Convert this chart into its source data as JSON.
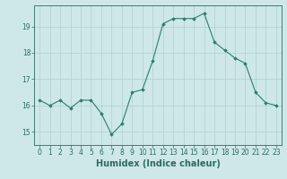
{
  "x": [
    0,
    1,
    2,
    3,
    4,
    5,
    6,
    7,
    8,
    9,
    10,
    11,
    12,
    13,
    14,
    15,
    16,
    17,
    18,
    19,
    20,
    21,
    22,
    23
  ],
  "y": [
    16.2,
    16.0,
    16.2,
    15.9,
    16.2,
    16.2,
    15.7,
    14.9,
    15.3,
    16.5,
    16.6,
    17.7,
    19.1,
    19.3,
    19.3,
    19.3,
    19.5,
    18.4,
    18.1,
    17.8,
    17.6,
    16.5,
    16.1,
    16.0
  ],
  "line_color": "#2e7d6e",
  "marker": "D",
  "marker_size": 1.8,
  "bg_color": "#cde8e6",
  "grid_color": "#b0d0ce",
  "xlabel": "Humidex (Indice chaleur)",
  "xlim": [
    -0.5,
    23.5
  ],
  "ylim": [
    14.5,
    19.8
  ],
  "yticks": [
    15,
    16,
    17,
    18,
    19
  ],
  "xticks": [
    0,
    1,
    2,
    3,
    4,
    5,
    6,
    7,
    8,
    9,
    10,
    11,
    12,
    13,
    14,
    15,
    16,
    17,
    18,
    19,
    20,
    21,
    22,
    23
  ],
  "tick_fontsize": 5.5,
  "xlabel_fontsize": 7.0,
  "tick_color": "#2e6b60",
  "spine_color": "#2e6b60"
}
